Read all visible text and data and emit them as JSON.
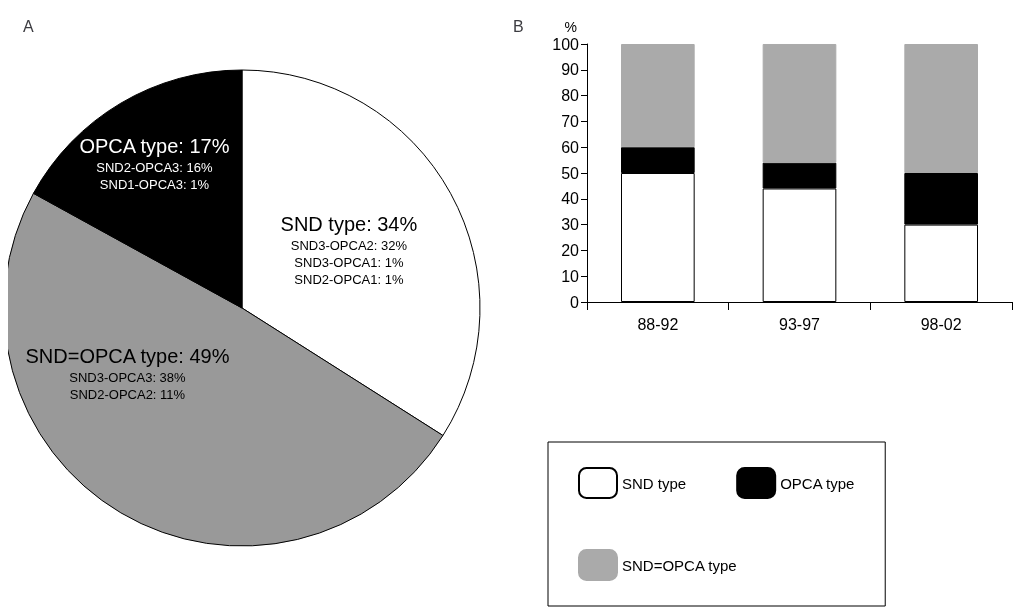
{
  "chart_data": [
    {
      "type": "pie",
      "title": "A",
      "categories": [
        "SND type: 34%",
        "SND=OPCA type: 49%",
        "OPCA type: 17%"
      ],
      "values": [
        34,
        49,
        17
      ],
      "colors": [
        "#ffffff",
        "#999999",
        "#000000"
      ],
      "legend": false,
      "annotations": [
        {
          "text": "SND3-OPCA2: 32%",
          "x": "SND type: 34%"
        },
        {
          "text": "SND3-OPCA1: 1%",
          "x": "SND type: 34%"
        },
        {
          "text": "SND2-OPCA1: 1%",
          "x": "SND type: 34%"
        },
        {
          "text": "SND3-OPCA3: 38%",
          "x": "SND=OPCA type: 49%"
        },
        {
          "text": "SND2-OPCA2: 11%",
          "x": "SND=OPCA type: 49%"
        },
        {
          "text": "SND2-OPCA3: 16%",
          "x": "OPCA type: 17%"
        },
        {
          "text": "SND1-OPCA3: 1%",
          "x": "OPCA type: 17%"
        }
      ]
    },
    {
      "type": "bar",
      "title": "B",
      "ylabel": "%",
      "categories": [
        "88-92",
        "93-97",
        "98-02"
      ],
      "stacked": true,
      "series": [
        {
          "name": "SND type",
          "color": "#ffffff",
          "values": [
            50,
            44,
            30
          ]
        },
        {
          "name": "OPCA type",
          "color": "#000000",
          "values": [
            10,
            10,
            20
          ]
        },
        {
          "name": "SND=OPCA type",
          "color": "#aaaaaa",
          "values": [
            40,
            46,
            50
          ]
        }
      ],
      "ylim": [
        0,
        100
      ],
      "yticks": [
        0,
        10,
        20,
        30,
        40,
        50,
        60,
        70,
        80,
        90,
        100
      ],
      "grid": false,
      "legend": "bottom"
    }
  ]
}
